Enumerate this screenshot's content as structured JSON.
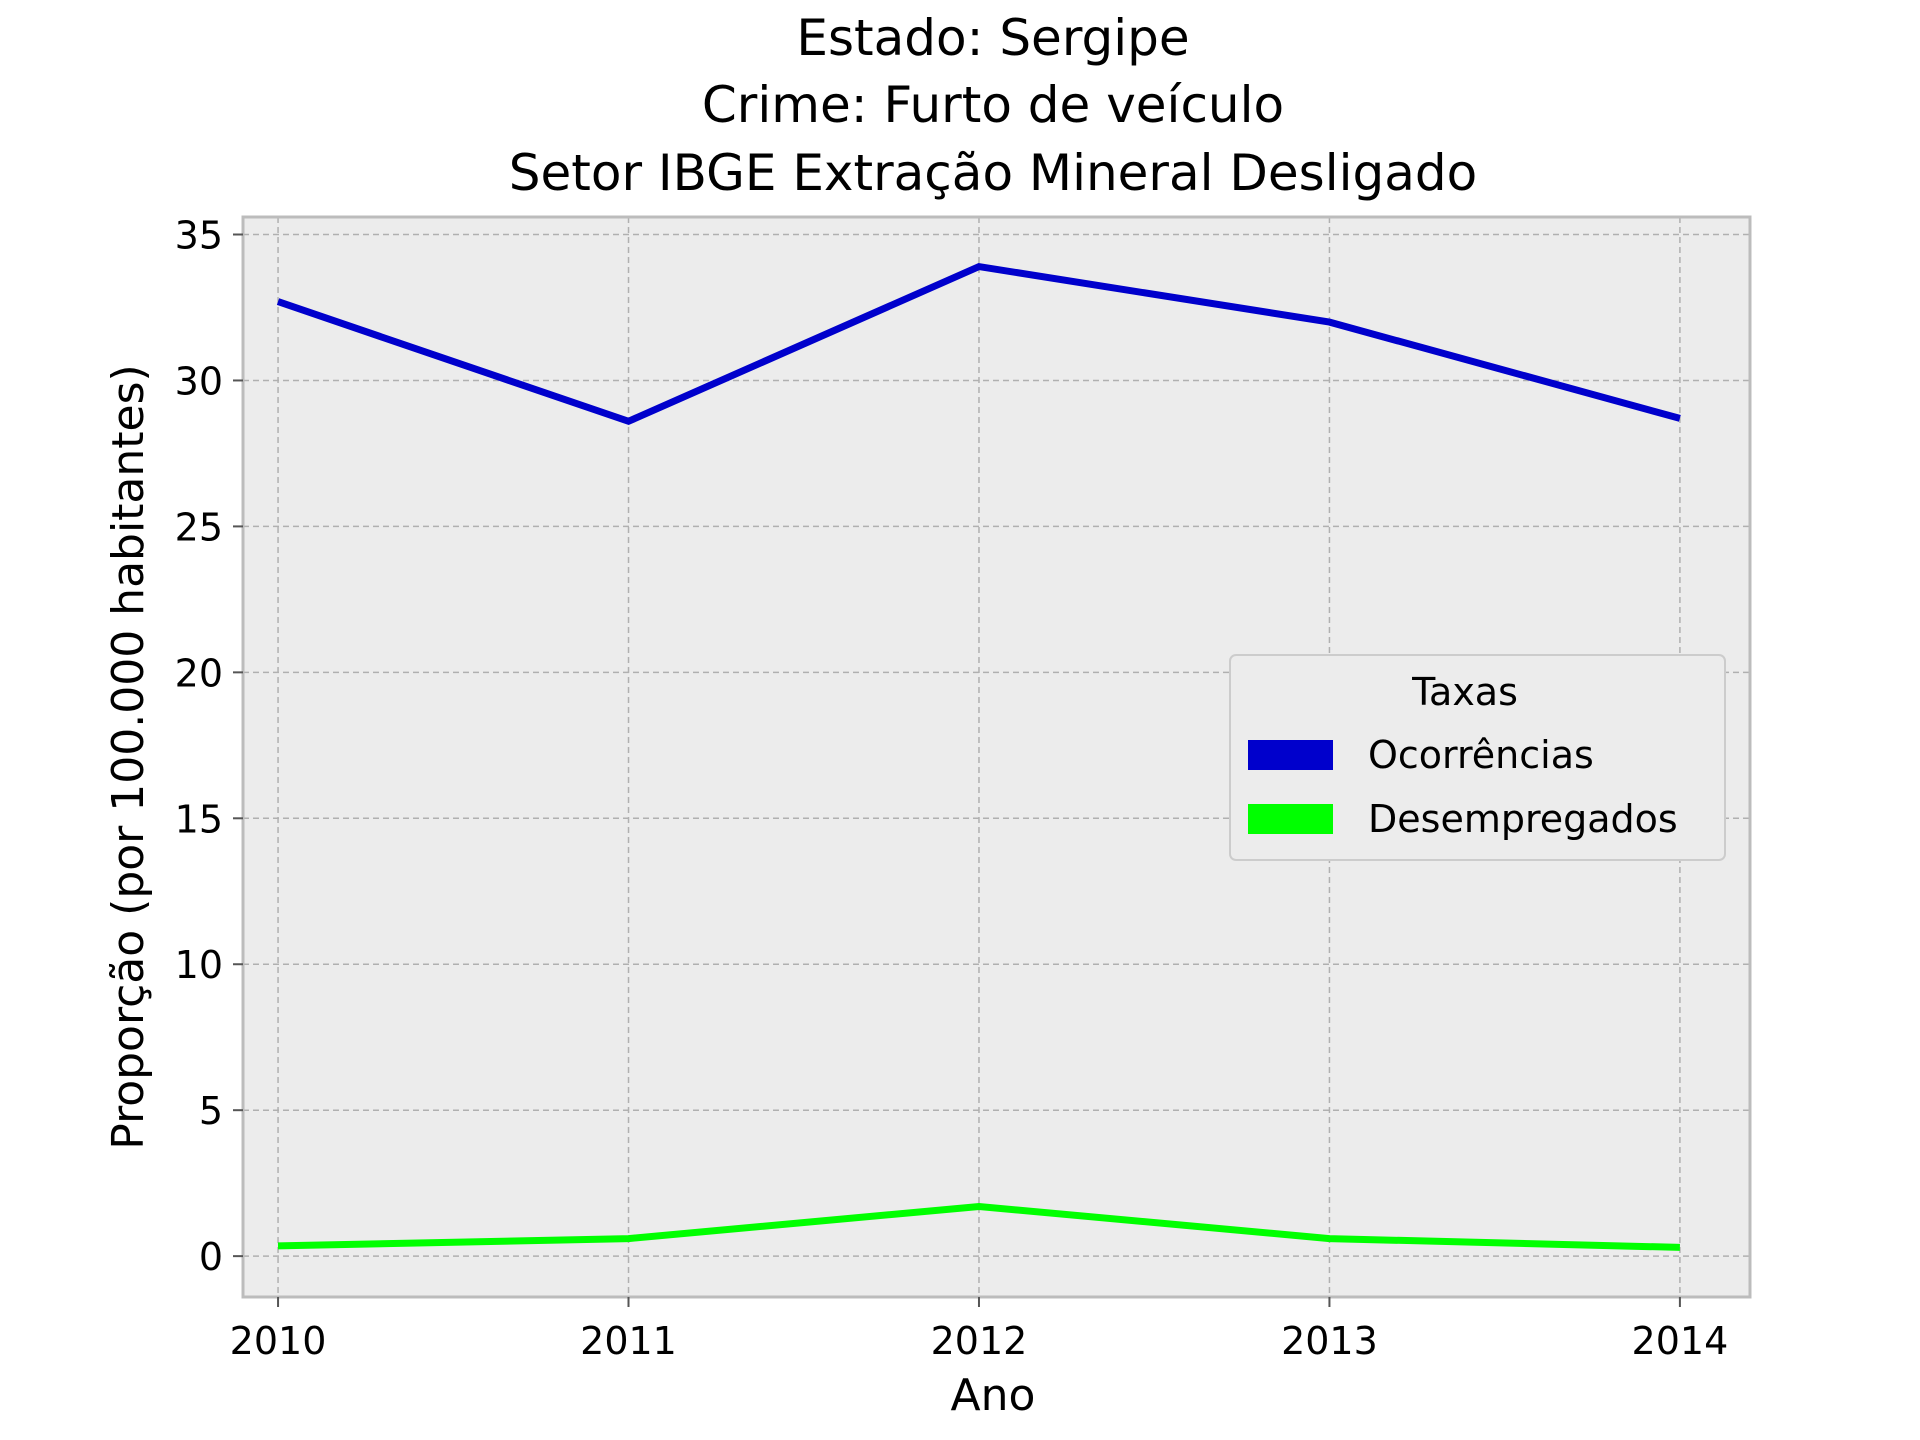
{
  "chart_data": {
    "type": "line",
    "title_lines": [
      "Estado: Sergipe",
      "Crime: Furto de veículo",
      "Setor IBGE  Extração Mineral   Desligado"
    ],
    "xlabel": "Ano",
    "ylabel": "Proporção (por 100.000 habitantes)",
    "x": [
      2010,
      2011,
      2012,
      2013,
      2014
    ],
    "x_tick_labels": [
      "2010",
      "2011",
      "2012",
      "2013",
      "2014"
    ],
    "y_ticks": [
      0,
      5,
      10,
      15,
      20,
      25,
      30,
      35
    ],
    "y_tick_labels": [
      "0",
      "5",
      "10",
      "15",
      "20",
      "25",
      "30",
      "35"
    ],
    "xlim": [
      2009.9,
      2014.2
    ],
    "ylim": [
      -1.4,
      35.6
    ],
    "grid": true,
    "legend": {
      "title": "Taxas",
      "placement": "center-right"
    },
    "series": [
      {
        "name": "Ocorrências",
        "color": "#0000cc",
        "values": [
          32.7,
          28.6,
          33.9,
          32.0,
          28.7
        ]
      },
      {
        "name": "Desempregados",
        "color": "#00ff00",
        "values": [
          0.35,
          0.6,
          1.7,
          0.6,
          0.3
        ]
      }
    ]
  },
  "colors": {
    "plot_background": "#ececec",
    "grid": "#b0b0b0",
    "frame": "#bcbcbc"
  }
}
